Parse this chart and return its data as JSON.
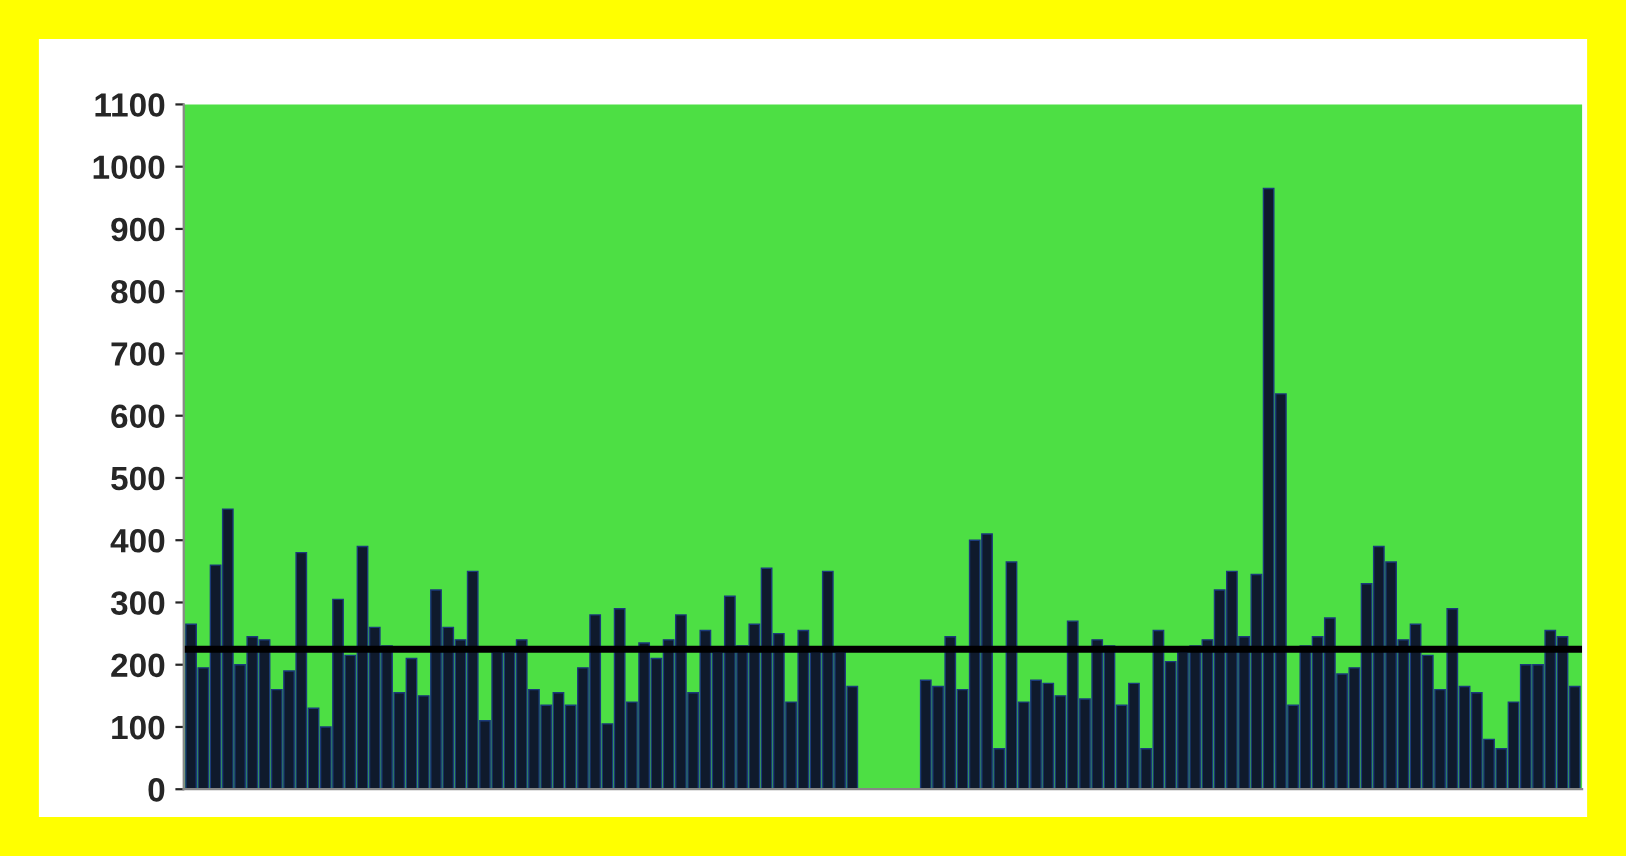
{
  "chart_data": {
    "type": "bar",
    "categories": [
      null,
      null,
      null,
      null,
      null,
      null,
      null,
      null,
      null,
      null,
      null,
      null,
      null,
      null,
      null,
      null,
      null,
      null,
      null,
      null,
      null,
      null,
      null,
      null,
      null,
      null,
      null,
      null,
      null,
      null,
      null,
      null,
      null,
      null,
      null,
      null,
      null,
      null,
      null,
      null,
      null,
      null,
      null,
      null,
      null,
      null,
      null,
      null,
      null,
      null,
      null,
      null,
      null,
      null,
      null,
      null,
      null,
      null,
      null,
      null,
      null,
      null,
      null,
      null,
      null,
      null,
      null,
      null,
      null,
      null,
      null,
      null,
      null,
      null,
      null,
      null,
      null,
      null,
      null,
      null,
      null,
      null,
      null,
      null,
      null,
      null,
      null,
      null,
      null,
      null,
      null,
      null,
      null,
      null,
      null,
      null,
      null,
      null,
      null,
      null,
      null,
      null,
      null,
      null,
      null,
      null,
      null,
      null,
      null,
      null,
      null,
      null,
      null,
      null
    ],
    "values": [
      265,
      195,
      360,
      450,
      200,
      245,
      240,
      160,
      190,
      380,
      130,
      100,
      305,
      215,
      390,
      260,
      230,
      155,
      210,
      150,
      320,
      260,
      240,
      350,
      110,
      220,
      220,
      240,
      160,
      135,
      155,
      135,
      195,
      280,
      105,
      290,
      140,
      235,
      210,
      240,
      280,
      155,
      255,
      220,
      310,
      230,
      265,
      355,
      250,
      140,
      255,
      220,
      350,
      220,
      165,
      null,
      null,
      null,
      null,
      null,
      175,
      165,
      245,
      160,
      400,
      410,
      65,
      365,
      140,
      175,
      170,
      150,
      270,
      145,
      240,
      230,
      135,
      170,
      65,
      255,
      205,
      220,
      230,
      240,
      320,
      350,
      245,
      345,
      965,
      635,
      135,
      230,
      245,
      275,
      185,
      195,
      330,
      390,
      365,
      240,
      265,
      215,
      160,
      290,
      165,
      155,
      80,
      65,
      140,
      200,
      200,
      255,
      245,
      165
    ],
    "color": "#0f1a2c",
    "ylim": [
      0,
      1100
    ],
    "yticks": [
      0,
      100,
      200,
      300,
      400,
      500,
      600,
      700,
      800,
      900,
      1000,
      1100
    ],
    "ref_lines": [
      {
        "axis": "y",
        "value": 225,
        "color": "#000000",
        "line_style": "solid"
      }
    ],
    "grid": false
  }
}
